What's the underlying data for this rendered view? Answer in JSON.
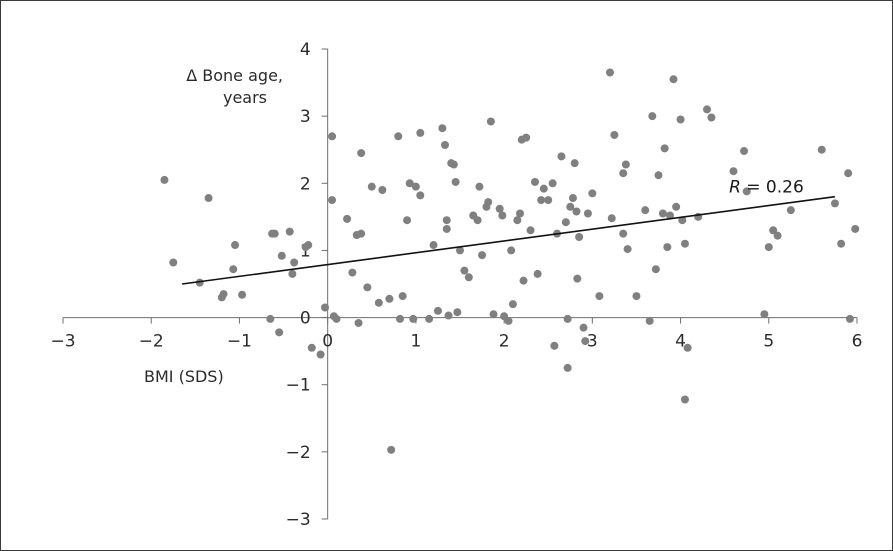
{
  "chart_data": {
    "type": "scatter",
    "title": "",
    "xlabel": "BMI (SDS)",
    "ylabel_lines": [
      "Δ Bone age,",
      "years"
    ],
    "xlim": [
      -3,
      6
    ],
    "ylim": [
      -3,
      4
    ],
    "x_ticks": [
      -3,
      -2,
      -1,
      0,
      1,
      2,
      3,
      4,
      5,
      6
    ],
    "y_ticks": [
      -3,
      -2,
      -1,
      0,
      1,
      2,
      3,
      4
    ],
    "x_tick_labels": [
      "−3",
      "−2",
      "−1",
      "0",
      "1",
      "2",
      "3",
      "4",
      "5",
      "6"
    ],
    "y_tick_labels": [
      "−3",
      "−2",
      "−1",
      "0",
      "1",
      "2",
      "3",
      "4"
    ],
    "point_color": "#808080",
    "line_color": "#111111",
    "grid": false,
    "trendline": {
      "x": [
        -1.65,
        5.75
      ],
      "y": [
        0.5,
        1.8
      ]
    },
    "annotation": {
      "prefix": "R",
      "text": " = 0.26",
      "x": 4.55,
      "y": 1.95
    },
    "points": [
      [
        -1.85,
        2.05
      ],
      [
        -1.75,
        0.82
      ],
      [
        -1.45,
        0.52
      ],
      [
        -1.35,
        1.78
      ],
      [
        -1.2,
        0.3
      ],
      [
        -1.18,
        0.35
      ],
      [
        -1.05,
        1.08
      ],
      [
        -1.07,
        0.72
      ],
      [
        -0.97,
        0.34
      ],
      [
        -0.63,
        1.25
      ],
      [
        -0.6,
        1.25
      ],
      [
        -0.52,
        0.92
      ],
      [
        -0.43,
        1.28
      ],
      [
        -0.4,
        0.65
      ],
      [
        -0.38,
        0.82
      ],
      [
        -0.25,
        1.05
      ],
      [
        -0.22,
        1.08
      ],
      [
        -0.65,
        -0.02
      ],
      [
        -0.55,
        -0.22
      ],
      [
        -0.18,
        -0.45
      ],
      [
        -0.08,
        -0.55
      ],
      [
        -0.03,
        0.15
      ],
      [
        0.05,
        1.75
      ],
      [
        0.05,
        2.7
      ],
      [
        0.07,
        0.02
      ],
      [
        0.1,
        -0.02
      ],
      [
        0.22,
        1.47
      ],
      [
        0.28,
        0.67
      ],
      [
        0.33,
        1.23
      ],
      [
        0.35,
        -0.08
      ],
      [
        0.38,
        2.45
      ],
      [
        0.38,
        1.25
      ],
      [
        0.45,
        0.45
      ],
      [
        0.5,
        1.95
      ],
      [
        0.58,
        0.22
      ],
      [
        0.62,
        1.9
      ],
      [
        0.7,
        0.28
      ],
      [
        0.72,
        -1.97
      ],
      [
        0.8,
        2.7
      ],
      [
        0.82,
        -0.02
      ],
      [
        0.85,
        0.32
      ],
      [
        0.9,
        1.45
      ],
      [
        0.93,
        2.0
      ],
      [
        0.97,
        -0.02
      ],
      [
        1.0,
        1.95
      ],
      [
        1.05,
        1.82
      ],
      [
        1.05,
        2.75
      ],
      [
        1.15,
        -0.02
      ],
      [
        1.2,
        1.08
      ],
      [
        1.25,
        0.1
      ],
      [
        1.3,
        2.82
      ],
      [
        1.33,
        2.57
      ],
      [
        1.35,
        1.45
      ],
      [
        1.35,
        1.32
      ],
      [
        1.37,
        0.03
      ],
      [
        1.4,
        2.3
      ],
      [
        1.43,
        2.28
      ],
      [
        1.45,
        2.02
      ],
      [
        1.47,
        0.08
      ],
      [
        1.5,
        1.0
      ],
      [
        1.55,
        0.7
      ],
      [
        1.6,
        0.6
      ],
      [
        1.65,
        1.52
      ],
      [
        1.7,
        1.45
      ],
      [
        1.72,
        1.95
      ],
      [
        1.75,
        0.93
      ],
      [
        1.8,
        1.65
      ],
      [
        1.82,
        1.72
      ],
      [
        1.85,
        2.92
      ],
      [
        1.88,
        0.05
      ],
      [
        1.95,
        1.62
      ],
      [
        1.98,
        1.52
      ],
      [
        2.0,
        0.02
      ],
      [
        2.05,
        -0.05
      ],
      [
        2.08,
        1.0
      ],
      [
        2.1,
        0.2
      ],
      [
        2.15,
        1.45
      ],
      [
        2.18,
        1.55
      ],
      [
        2.2,
        2.65
      ],
      [
        2.22,
        0.55
      ],
      [
        2.25,
        2.68
      ],
      [
        2.3,
        1.3
      ],
      [
        2.35,
        2.02
      ],
      [
        2.38,
        0.65
      ],
      [
        2.42,
        1.75
      ],
      [
        2.45,
        1.92
      ],
      [
        2.5,
        1.75
      ],
      [
        2.55,
        2.0
      ],
      [
        2.57,
        -0.42
      ],
      [
        2.6,
        1.25
      ],
      [
        2.65,
        2.4
      ],
      [
        2.7,
        1.42
      ],
      [
        2.72,
        -0.02
      ],
      [
        2.72,
        -0.75
      ],
      [
        2.75,
        1.65
      ],
      [
        2.78,
        1.78
      ],
      [
        2.8,
        2.3
      ],
      [
        2.82,
        1.58
      ],
      [
        2.83,
        0.58
      ],
      [
        2.85,
        1.2
      ],
      [
        2.9,
        -0.15
      ],
      [
        2.92,
        -0.35
      ],
      [
        2.95,
        1.55
      ],
      [
        3.0,
        1.85
      ],
      [
        3.08,
        0.32
      ],
      [
        3.2,
        3.65
      ],
      [
        3.22,
        1.48
      ],
      [
        3.25,
        2.72
      ],
      [
        3.35,
        1.25
      ],
      [
        3.35,
        2.15
      ],
      [
        3.38,
        2.28
      ],
      [
        3.4,
        1.02
      ],
      [
        3.5,
        0.32
      ],
      [
        3.6,
        1.6
      ],
      [
        3.65,
        -0.05
      ],
      [
        3.68,
        3.0
      ],
      [
        3.72,
        0.72
      ],
      [
        3.75,
        2.12
      ],
      [
        3.8,
        1.55
      ],
      [
        3.82,
        2.52
      ],
      [
        3.85,
        1.05
      ],
      [
        3.88,
        1.52
      ],
      [
        3.92,
        3.55
      ],
      [
        3.95,
        1.65
      ],
      [
        4.0,
        2.95
      ],
      [
        4.02,
        1.45
      ],
      [
        4.05,
        1.1
      ],
      [
        4.05,
        -1.22
      ],
      [
        4.08,
        -0.45
      ],
      [
        4.2,
        1.5
      ],
      [
        4.3,
        3.1
      ],
      [
        4.35,
        2.98
      ],
      [
        4.6,
        2.18
      ],
      [
        4.72,
        2.48
      ],
      [
        4.75,
        1.88
      ],
      [
        4.95,
        0.05
      ],
      [
        5.0,
        1.05
      ],
      [
        5.05,
        1.3
      ],
      [
        5.1,
        1.22
      ],
      [
        5.25,
        1.6
      ],
      [
        5.6,
        2.5
      ],
      [
        5.75,
        1.7
      ],
      [
        5.82,
        1.1
      ],
      [
        5.9,
        2.15
      ],
      [
        5.92,
        -0.02
      ],
      [
        5.98,
        1.32
      ]
    ]
  }
}
